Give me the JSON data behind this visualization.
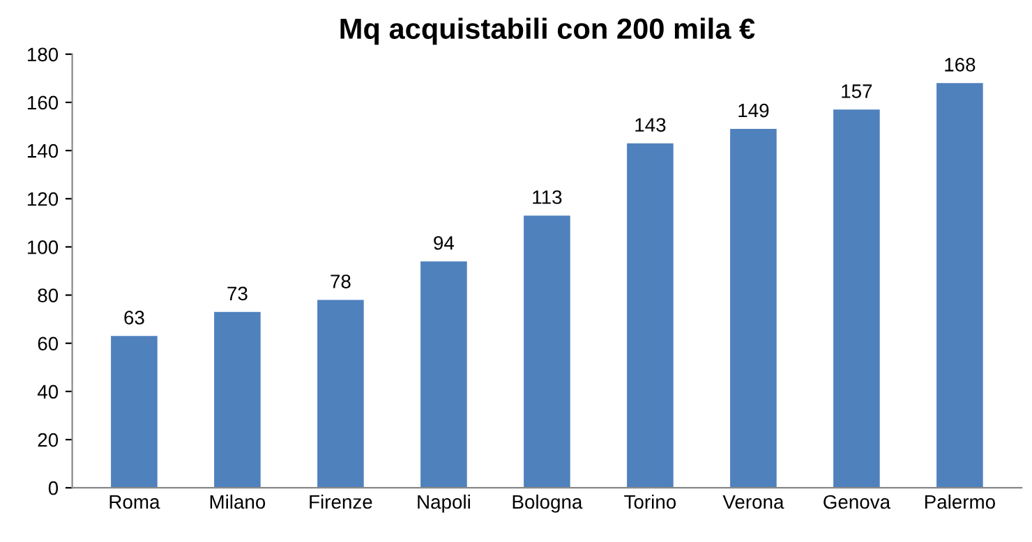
{
  "chart_data": {
    "type": "bar",
    "title": "Mq acquistabili con 200 mila €",
    "categories": [
      "Roma",
      "Milano",
      "Firenze",
      "Napoli",
      "Bologna",
      "Torino",
      "Verona",
      "Genova",
      "Palermo"
    ],
    "values": [
      63,
      73,
      78,
      94,
      113,
      143,
      149,
      157,
      168
    ],
    "color": "#4f81bd",
    "ylim": [
      0,
      180
    ],
    "yticks": [
      0,
      20,
      40,
      60,
      80,
      100,
      120,
      140,
      160,
      180
    ],
    "grid": false,
    "data_labels": true
  }
}
